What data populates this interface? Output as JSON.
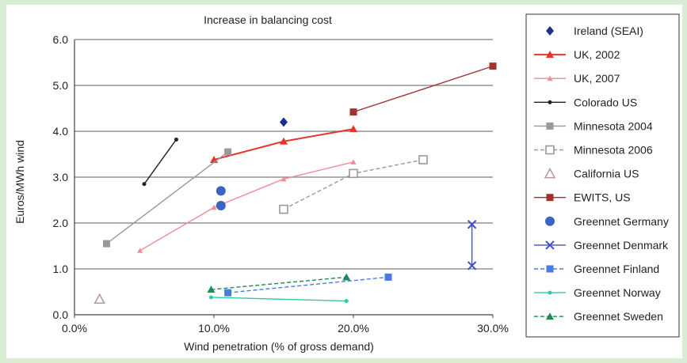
{
  "chart_data": {
    "type": "line",
    "title": "Increase in balancing cost",
    "xlabel": "Wind penetration (% of gross demand)",
    "ylabel": "Euros/MWh wind",
    "xlim": [
      0,
      30
    ],
    "ylim": [
      0,
      6
    ],
    "x_ticks": [
      "0.0%",
      "10.0%",
      "20.0%",
      "30.0%"
    ],
    "y_ticks": [
      "0.0",
      "1.0",
      "2.0",
      "3.0",
      "4.0",
      "5.0",
      "6.0"
    ],
    "grid": "horizontal",
    "legend_position": "right",
    "series": [
      {
        "name": "Ireland (SEAI)",
        "color": "#1f2f8f",
        "marker": "diamond",
        "line": "none",
        "points": [
          [
            15.0,
            4.2
          ]
        ]
      },
      {
        "name": "UK, 2002",
        "color": "#e8342b",
        "marker": "triangle",
        "line": "solid",
        "points": [
          [
            10.0,
            3.38
          ],
          [
            15.0,
            3.78
          ],
          [
            20.0,
            4.05
          ]
        ]
      },
      {
        "name": "UK, 2007",
        "color": "#f08a96",
        "marker": "triangle-small",
        "line": "solid",
        "points": [
          [
            4.7,
            1.4
          ],
          [
            10.0,
            2.34
          ],
          [
            15.0,
            2.96
          ],
          [
            20.0,
            3.33
          ]
        ]
      },
      {
        "name": "Colorado US",
        "color": "#222222",
        "marker": "dot",
        "line": "solid",
        "points": [
          [
            5.0,
            2.85
          ],
          [
            7.3,
            3.82
          ]
        ]
      },
      {
        "name": "Minnesota 2004",
        "color": "#999999",
        "marker": "square",
        "line": "solid",
        "points": [
          [
            2.3,
            1.55
          ],
          [
            11.0,
            3.55
          ]
        ]
      },
      {
        "name": "Minnesota 2006",
        "color": "#999999",
        "marker": "square-open",
        "line": "dashed",
        "points": [
          [
            15.0,
            2.3
          ],
          [
            20.0,
            3.08
          ],
          [
            25.0,
            3.38
          ]
        ]
      },
      {
        "name": "California US",
        "color": "#b39a9a",
        "marker": "triangle-open",
        "line": "none",
        "points": [
          [
            1.8,
            0.34
          ]
        ]
      },
      {
        "name": "EWITS, US",
        "color": "#a5312e",
        "marker": "square",
        "line": "solid",
        "points": [
          [
            20.0,
            4.42
          ],
          [
            30.0,
            5.42
          ]
        ]
      },
      {
        "name": "Greennet Germany",
        "color": "#3a63c4",
        "marker": "dot-large",
        "line": "none",
        "points": [
          [
            10.5,
            2.7
          ],
          [
            10.5,
            2.38
          ]
        ]
      },
      {
        "name": "Greennet Denmark",
        "color": "#4050c8",
        "marker": "x",
        "line": "solid",
        "points": [
          [
            28.5,
            1.97
          ],
          [
            28.5,
            1.07
          ]
        ]
      },
      {
        "name": "Greennet Finland",
        "color": "#4a7be0",
        "marker": "square",
        "line": "dashed",
        "points": [
          [
            11.0,
            0.48
          ],
          [
            22.5,
            0.82
          ]
        ]
      },
      {
        "name": "Greennet Norway",
        "color": "#33c6a8",
        "marker": "dot",
        "line": "solid",
        "points": [
          [
            9.8,
            0.38
          ],
          [
            19.5,
            0.3
          ]
        ]
      },
      {
        "name": "Greennet Sweden",
        "color": "#1e8a55",
        "marker": "triangle",
        "line": "dashed",
        "points": [
          [
            9.8,
            0.55
          ],
          [
            19.5,
            0.82
          ]
        ]
      }
    ]
  }
}
